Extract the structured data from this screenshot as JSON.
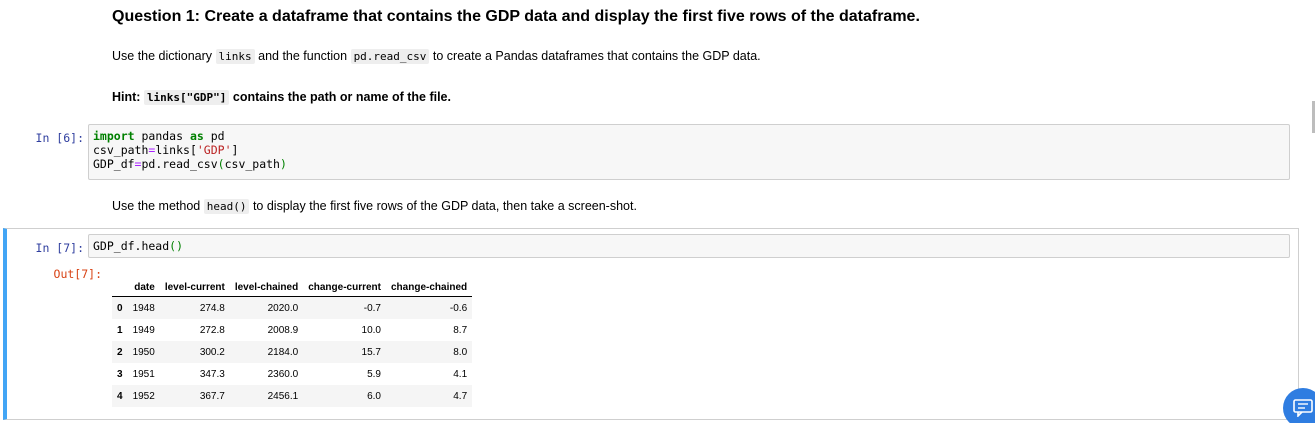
{
  "markdown": {
    "question_title": "Question 1: Create a dataframe that contains the GDP data and display the first five rows of the dataframe.",
    "p1_a": "Use the dictionary ",
    "p1_code1": "links",
    "p1_b": " and the function ",
    "p1_code2": "pd.read_csv",
    "p1_c": " to create a Pandas dataframes that contains the GDP data.",
    "hint_a": "Hint: ",
    "hint_code": "links[\"GDP\"]",
    "hint_b": " contains the path or name of the file.",
    "p2_a": "Use the method ",
    "p2_code": "head()",
    "p2_b": " to display the first five rows of the GDP data, then take a screen-shot."
  },
  "cell6": {
    "prompt": "In [6]:",
    "l1_kw1": "import",
    "l1_mod": " pandas ",
    "l1_kw2": "as",
    "l1_alias": " pd",
    "l2_a": "csv_path",
    "l2_eq": "=",
    "l2_b": "links[",
    "l2_str": "'GDP'",
    "l2_c": "]",
    "l3_a": "GDP_df",
    "l3_eq": "=",
    "l3_b": "pd.read_csv",
    "l3_p1": "(",
    "l3_c": "csv_path",
    "l3_p2": ")"
  },
  "cell7": {
    "prompt": "In [7]:",
    "code_a": "GDP_df.head",
    "code_parens": "()",
    "out_prompt": "Out[7]:"
  },
  "dataframe": {
    "columns": [
      "",
      "date",
      "level-current",
      "level-chained",
      "change-current",
      "change-chained"
    ],
    "rows": [
      {
        "index": "0",
        "date": "1948",
        "level_current": "274.8",
        "level_chained": "2020.0",
        "change_current": "-0.7",
        "change_chained": "-0.6"
      },
      {
        "index": "1",
        "date": "1949",
        "level_current": "272.8",
        "level_chained": "2008.9",
        "change_current": "10.0",
        "change_chained": "8.7"
      },
      {
        "index": "2",
        "date": "1950",
        "level_current": "300.2",
        "level_chained": "2184.0",
        "change_current": "15.7",
        "change_chained": "8.0"
      },
      {
        "index": "3",
        "date": "1951",
        "level_current": "347.3",
        "level_chained": "2360.0",
        "change_current": "5.9",
        "change_chained": "4.1"
      },
      {
        "index": "4",
        "date": "1952",
        "level_current": "367.7",
        "level_chained": "2456.1",
        "change_current": "6.0",
        "change_chained": "4.7"
      }
    ]
  },
  "icons": {
    "fab": "chat-feedback-icon"
  },
  "colors": {
    "selected_cell_border": "#42a5f5",
    "prompt_in": "#303f9f",
    "prompt_out": "#d84315",
    "fab": "#2f7de1"
  }
}
